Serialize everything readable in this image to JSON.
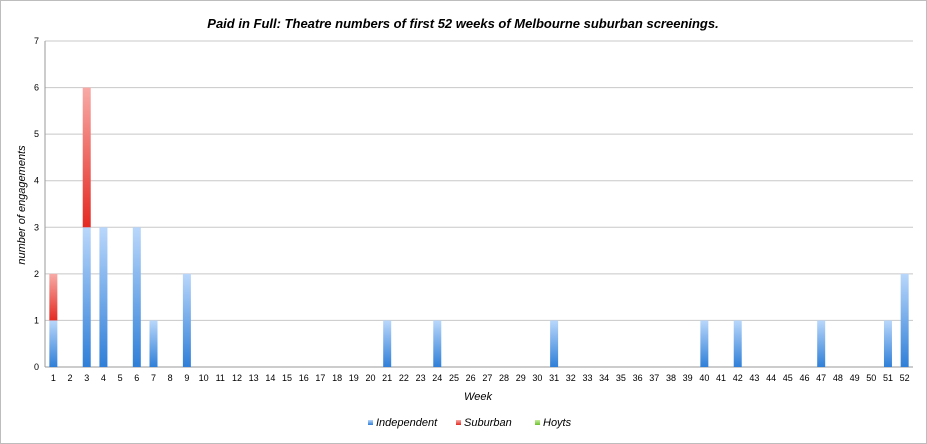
{
  "chart_data": {
    "type": "bar",
    "stacked": true,
    "title": "Paid in Full: Theatre numbers of first 52 weeks of Melbourne suburban screenings.",
    "xlabel": "Week",
    "ylabel": "number of engagements",
    "ylim": [
      0,
      7
    ],
    "yticks": [
      0,
      1,
      2,
      3,
      4,
      5,
      6,
      7
    ],
    "grid": true,
    "legend_position": "bottom",
    "categories": [
      "1",
      "2",
      "3",
      "4",
      "5",
      "6",
      "7",
      "8",
      "9",
      "10",
      "11",
      "12",
      "13",
      "14",
      "15",
      "16",
      "17",
      "18",
      "19",
      "20",
      "21",
      "22",
      "23",
      "24",
      "25",
      "26",
      "27",
      "28",
      "29",
      "30",
      "31",
      "32",
      "33",
      "34",
      "35",
      "36",
      "37",
      "38",
      "39",
      "40",
      "41",
      "42",
      "43",
      "44",
      "45",
      "46",
      "47",
      "48",
      "49",
      "50",
      "51",
      "52"
    ],
    "series": [
      {
        "name": "Independent",
        "color": "#4a90e2",
        "values": [
          1,
          0,
          3,
          3,
          0,
          3,
          1,
          0,
          2,
          0,
          0,
          0,
          0,
          0,
          0,
          0,
          0,
          0,
          0,
          0,
          1,
          0,
          0,
          1,
          0,
          0,
          0,
          0,
          0,
          0,
          1,
          0,
          0,
          0,
          0,
          0,
          0,
          0,
          0,
          1,
          0,
          1,
          0,
          0,
          0,
          0,
          1,
          0,
          0,
          0,
          1,
          2
        ]
      },
      {
        "name": "Suburban",
        "color": "#e8413c",
        "values": [
          1,
          0,
          3,
          0,
          0,
          0,
          0,
          0,
          0,
          0,
          0,
          0,
          0,
          0,
          0,
          0,
          0,
          0,
          0,
          0,
          0,
          0,
          0,
          0,
          0,
          0,
          0,
          0,
          0,
          0,
          0,
          0,
          0,
          0,
          0,
          0,
          0,
          0,
          0,
          0,
          0,
          0,
          0,
          0,
          0,
          0,
          0,
          0,
          0,
          0,
          0,
          0
        ]
      },
      {
        "name": "Hoyts",
        "color": "#8ed13f",
        "values": [
          0,
          0,
          0,
          0,
          0,
          0,
          0,
          0,
          0,
          0,
          0,
          0,
          0,
          0,
          0,
          0,
          0,
          0,
          0,
          0,
          0,
          0,
          0,
          0,
          0,
          0,
          0,
          0,
          0,
          0,
          0,
          0,
          0,
          0,
          0,
          0,
          0,
          0,
          0,
          0,
          0,
          0,
          0,
          0,
          0,
          0,
          0,
          0,
          0,
          0,
          0,
          0
        ]
      }
    ]
  }
}
